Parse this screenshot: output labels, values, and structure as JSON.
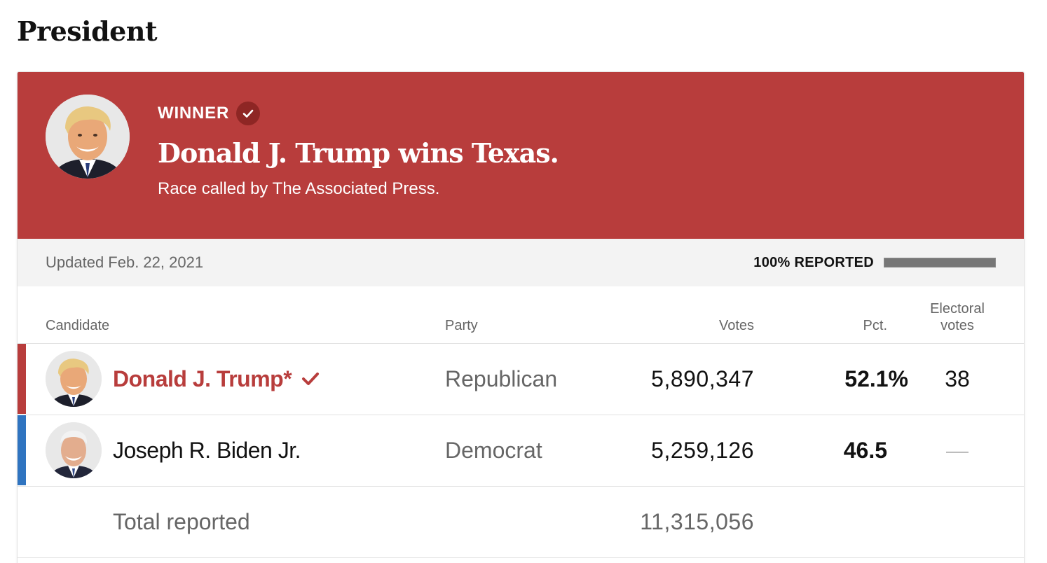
{
  "page": {
    "title": "President"
  },
  "banner": {
    "kicker": "WINNER",
    "headline": "Donald J. Trump wins Texas.",
    "subline": "Race called by The Associated Press.",
    "background_color": "#b83d3c",
    "badge_icon": "checkmark-icon"
  },
  "status": {
    "updated": "Updated Feb. 22, 2021",
    "reported_label": "100% REPORTED",
    "reported_fraction": 1.0
  },
  "table": {
    "headers": {
      "candidate": "Candidate",
      "party": "Party",
      "votes": "Votes",
      "pct": "Pct.",
      "electoral_line1": "Electoral",
      "electoral_line2": "votes"
    },
    "rows": [
      {
        "name": "Donald J. Trump*",
        "party": "Republican",
        "votes": "5,890,347",
        "pct": "52.1%",
        "electoral_votes": "38",
        "winner": true,
        "party_color": "#b83d3c"
      },
      {
        "name": "Joseph R. Biden Jr.",
        "party": "Democrat",
        "votes": "5,259,126",
        "pct": "46.5",
        "electoral_votes": "—",
        "winner": false,
        "party_color": "#2f74c0"
      }
    ],
    "total": {
      "label": "Total reported",
      "votes": "11,315,056"
    }
  }
}
